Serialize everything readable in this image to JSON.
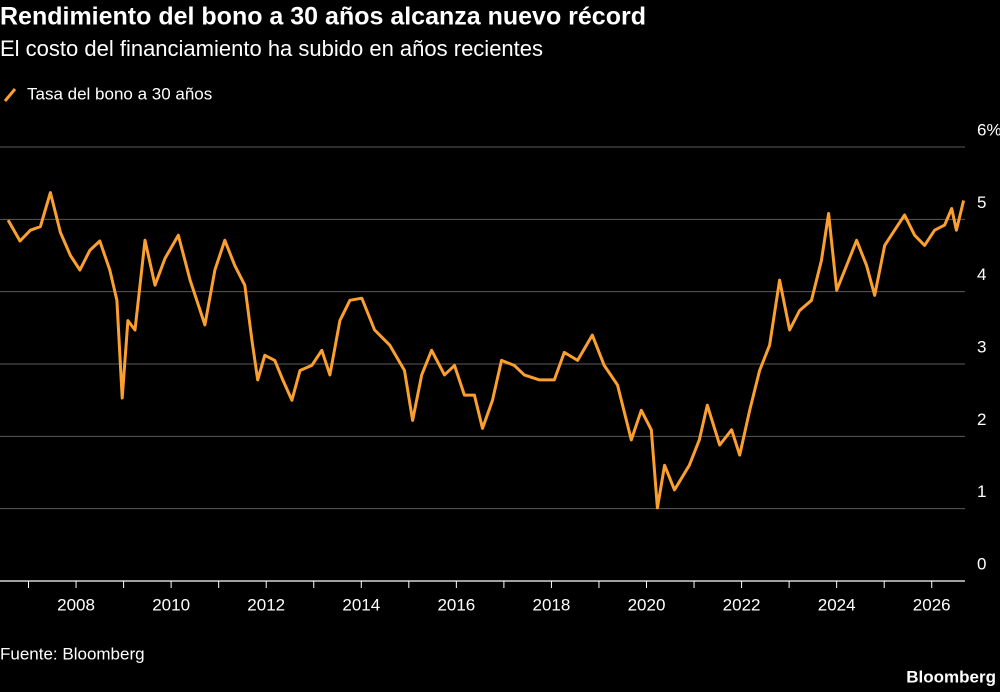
{
  "chart_data": {
    "type": "line",
    "title": "Rendimiento del bono a 30 años alcanza nuevo récord",
    "subtitle": "El costo del financiamiento ha subido en años recientes",
    "source": "Fuente: Bloomberg",
    "brand": "Bloomberg",
    "series": [
      {
        "name": "Tasa del bono a 30 años",
        "color": "#fb9f2f",
        "x": [
          2006.57,
          2006.82,
          2007.04,
          2007.25,
          2007.46,
          2007.67,
          2007.88,
          2008.08,
          2008.29,
          2008.5,
          2008.71,
          2008.86,
          2008.97,
          2009.09,
          2009.24,
          2009.45,
          2009.66,
          2009.87,
          2010.15,
          2010.4,
          2010.71,
          2010.92,
          2011.13,
          2011.34,
          2011.55,
          2011.7,
          2011.82,
          2011.97,
          2012.18,
          2012.35,
          2012.54,
          2012.71,
          2012.96,
          2013.17,
          2013.34,
          2013.55,
          2013.76,
          2014.01,
          2014.28,
          2014.6,
          2014.91,
          2015.08,
          2015.27,
          2015.48,
          2015.75,
          2015.96,
          2016.17,
          2016.38,
          2016.55,
          2016.76,
          2016.95,
          2017.22,
          2017.43,
          2017.75,
          2018.06,
          2018.27,
          2018.55,
          2018.86,
          2019.11,
          2019.39,
          2019.68,
          2019.89,
          2020.1,
          2020.23,
          2020.38,
          2020.59,
          2020.9,
          2021.11,
          2021.28,
          2021.54,
          2021.79,
          2021.96,
          2022.17,
          2022.38,
          2022.59,
          2022.8,
          2023.01,
          2023.22,
          2023.47,
          2023.68,
          2023.83,
          2024.0,
          2024.21,
          2024.42,
          2024.63,
          2024.8,
          2025.01,
          2025.22,
          2025.43,
          2025.64,
          2025.85,
          2026.06,
          2026.27,
          2026.42,
          2026.52,
          2026.67
        ],
        "values": [
          4.99,
          4.7,
          4.85,
          4.9,
          5.37,
          4.82,
          4.5,
          4.3,
          4.57,
          4.7,
          4.3,
          3.88,
          2.53,
          3.6,
          3.47,
          4.71,
          4.09,
          4.46,
          4.78,
          4.16,
          3.54,
          4.3,
          4.71,
          4.36,
          4.09,
          3.33,
          2.78,
          3.12,
          3.05,
          2.78,
          2.5,
          2.91,
          2.98,
          3.19,
          2.85,
          3.6,
          3.88,
          3.91,
          3.47,
          3.26,
          2.91,
          2.22,
          2.85,
          3.19,
          2.85,
          2.98,
          2.57,
          2.57,
          2.11,
          2.5,
          3.05,
          2.98,
          2.85,
          2.78,
          2.78,
          3.16,
          3.05,
          3.4,
          2.98,
          2.71,
          1.95,
          2.36,
          2.09,
          1.01,
          1.6,
          1.26,
          1.6,
          1.95,
          2.43,
          1.88,
          2.09,
          1.74,
          2.36,
          2.91,
          3.26,
          4.16,
          3.47,
          3.74,
          3.88,
          4.43,
          5.08,
          4.02,
          4.36,
          4.71,
          4.36,
          3.95,
          4.64,
          4.85,
          5.06,
          4.78,
          4.64,
          4.85,
          4.92,
          5.15,
          4.85,
          5.26
        ]
      }
    ],
    "xlim": [
      2006.4,
      2026.7
    ],
    "xticks": [
      2008,
      2010,
      2012,
      2014,
      2016,
      2018,
      2020,
      2022,
      2024,
      2026
    ],
    "xminorticks": [
      2007,
      2009,
      2011,
      2013,
      2015,
      2017,
      2019,
      2021,
      2023,
      2025
    ],
    "ylim": [
      0,
      6
    ],
    "yticks": [
      0,
      1,
      2,
      3,
      4,
      5,
      {
        "value": 6,
        "label": "6%"
      }
    ],
    "grid": true
  }
}
